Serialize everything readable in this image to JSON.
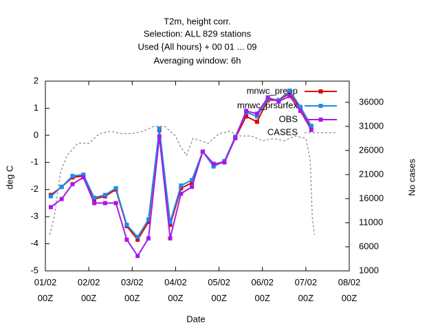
{
  "chart_data": {
    "type": "line",
    "title_lines": [
      "T2m, height corr.",
      "Selection: ALL    829 stations",
      "Used {All hours} + 00 01 ... 09",
      "Averaging window:  6h"
    ],
    "xlabel": "Date",
    "ylabel": "deg C",
    "y2label": "No cases",
    "x": [
      0.125,
      0.375,
      0.625,
      0.875,
      1.125,
      1.375,
      1.625,
      1.875,
      2.125,
      2.375,
      2.625,
      2.875,
      3.125,
      3.375,
      3.625,
      3.875,
      4.125,
      4.375,
      4.625,
      4.875,
      5.125,
      5.375,
      5.625,
      5.875,
      6.125
    ],
    "xlim": [
      0,
      7
    ],
    "xticks": [
      {
        "value": 0,
        "label": "01/02\n00Z"
      },
      {
        "value": 1,
        "label": "02/02\n00Z"
      },
      {
        "value": 2,
        "label": "03/02\n00Z"
      },
      {
        "value": 3,
        "label": "04/02\n00Z"
      },
      {
        "value": 4,
        "label": "05/02\n00Z"
      },
      {
        "value": 5,
        "label": "06/02\n00Z"
      },
      {
        "value": 6,
        "label": "07/02\n00Z"
      },
      {
        "value": 7,
        "label": "08/02\n00Z"
      }
    ],
    "ylim": [
      -5,
      2
    ],
    "yticks": [
      -5,
      -4,
      -3,
      -2,
      -1,
      0,
      1,
      2
    ],
    "y2lim": [
      1000,
      40400
    ],
    "y2ticks": [
      1000,
      6000,
      11000,
      16000,
      21000,
      26000,
      31000,
      36000
    ],
    "series": [
      {
        "name": "mnwc_preop",
        "color": "#e00000",
        "values": [
          -2.2,
          -1.9,
          -1.55,
          -1.5,
          -2.35,
          -2.25,
          -2.0,
          -3.35,
          -3.85,
          -3.2,
          0.2,
          -3.3,
          -1.95,
          -1.75,
          -0.6,
          -1.1,
          -0.95,
          -0.1,
          0.7,
          0.5,
          1.3,
          1.3,
          1.55,
          1.0,
          0.3
        ]
      },
      {
        "name": "mnwc_prsurfex",
        "color": "#1c8ce8",
        "values": [
          -2.25,
          -1.9,
          -1.5,
          -1.45,
          -2.3,
          -2.2,
          -1.95,
          -3.3,
          -3.75,
          -3.1,
          0.25,
          -3.2,
          -1.85,
          -1.65,
          -0.6,
          -1.15,
          -0.95,
          -0.05,
          0.85,
          0.7,
          1.35,
          1.3,
          1.65,
          1.05,
          0.35
        ]
      },
      {
        "name": "OBS",
        "color": "#a818e8",
        "values": [
          -2.65,
          -2.35,
          -1.8,
          -1.55,
          -2.5,
          -2.5,
          -2.5,
          -3.85,
          -4.45,
          -3.8,
          -0.05,
          -3.8,
          -2.15,
          -1.9,
          -0.6,
          -1.05,
          -1.0,
          -0.1,
          0.9,
          0.8,
          1.4,
          1.25,
          1.45,
          0.9,
          0.2
        ]
      },
      {
        "name": "CASES",
        "color": "#888888",
        "axis": "y2",
        "dashed": true,
        "x": [
          0.1,
          0.2,
          0.35,
          0.5,
          0.75,
          1.0,
          1.25,
          1.5,
          1.75,
          2.0,
          2.25,
          2.5,
          2.75,
          3.0,
          3.1,
          3.25,
          3.4,
          3.6,
          3.75,
          4.0,
          4.25,
          4.5,
          4.75,
          5.0,
          5.25,
          5.5,
          5.75,
          6.0,
          6.1,
          6.15,
          6.2
        ],
        "values": [
          8500,
          12000,
          21500,
          25000,
          27500,
          27500,
          29500,
          30000,
          29500,
          29500,
          30000,
          31000,
          31000,
          29000,
          27000,
          25000,
          28500,
          28000,
          27500,
          29500,
          30000,
          29000,
          29000,
          28000,
          28500,
          28000,
          29000,
          28500,
          24000,
          12000,
          8500
        ]
      }
    ]
  }
}
